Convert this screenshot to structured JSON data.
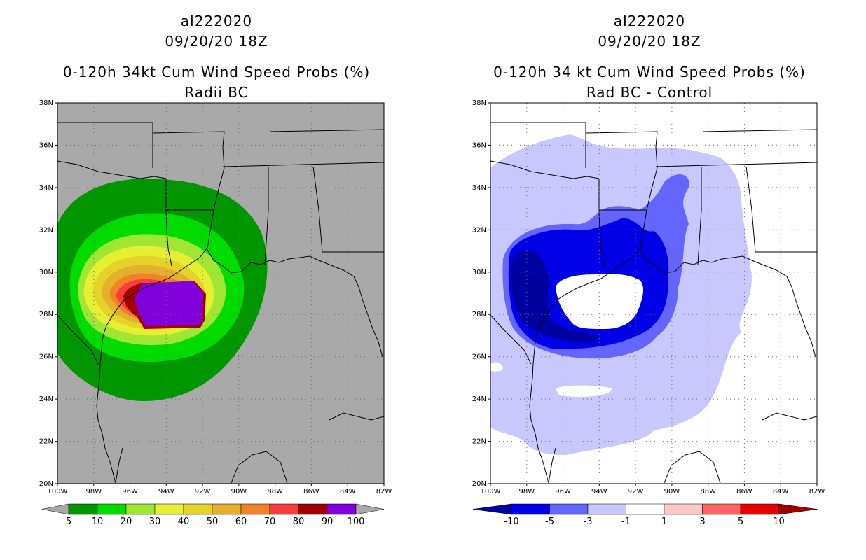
{
  "left": {
    "title_storm": "al222020",
    "title_time": "09/20/20 18Z",
    "title_product": "0-120h 34kt Cum Wind Speed Probs (%)",
    "title_sub": "Radii BC",
    "colorbar_labels": [
      "5",
      "10",
      "20",
      "30",
      "40",
      "50",
      "60",
      "70",
      "80",
      "90",
      "100"
    ],
    "colorbar_colors": [
      "#009600",
      "#00dc00",
      "#a0e632",
      "#e6f032",
      "#e6d228",
      "#e6af2d",
      "#f08228",
      "#fa3c3c",
      "#a00000",
      "#8200dc"
    ]
  },
  "right": {
    "title_storm": "al222020",
    "title_time": "09/20/20 18Z",
    "title_product": "0-120h 34 kt Cum Wind Speed Probs (%)",
    "title_sub": "Rad BC - Control",
    "colorbar_labels": [
      "-10",
      "-5",
      "-3",
      "-1",
      "1",
      "3",
      "5",
      "10"
    ],
    "colorbar_colors": [
      "#0000a0",
      "#0000e6",
      "#6464ff",
      "#c8c8ff",
      "#ffffff",
      "#ffc8c8",
      "#ff6464",
      "#e60000",
      "#a00000"
    ]
  },
  "axes": {
    "lat_labels": [
      "38N",
      "36N",
      "34N",
      "32N",
      "30N",
      "28N",
      "26N",
      "24N",
      "22N",
      "20N"
    ],
    "lon_labels": [
      "100W",
      "98W",
      "96W",
      "94W",
      "92W",
      "90W",
      "88W",
      "86W",
      "84W",
      "82W"
    ]
  },
  "colors": {
    "land_bg_left": "#a9a9a9",
    "grid": "#6e6e6e"
  }
}
